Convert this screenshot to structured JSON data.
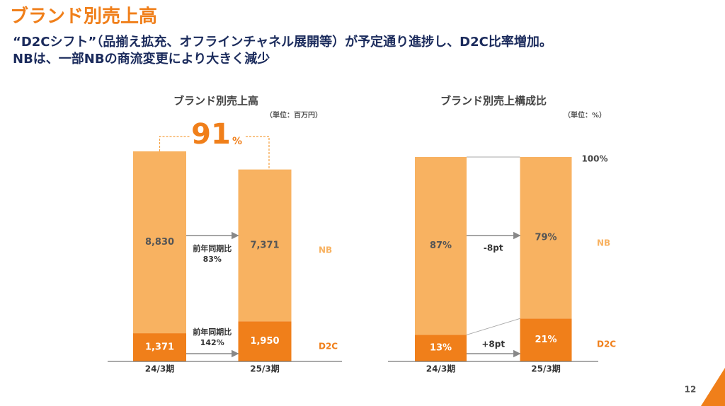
{
  "header": {
    "title": "ブランド別売上高",
    "subtitle_lines": [
      "“D2Cシフト”（品揃え拡充、オフラインチャネル展開等）が予定通り進捗し、D2C比率増加。",
      "NBは、一部NBの商流変更により大きく減少"
    ]
  },
  "page_number": "12",
  "chart_data": [
    {
      "type": "bar",
      "stacked": true,
      "title": "ブランド別売上高",
      "unit": "（単位：百万円）",
      "categories": [
        "24/3期",
        "25/3期"
      ],
      "series": [
        {
          "name": "D2C",
          "color": "#f07f1a",
          "values": [
            1371,
            1950
          ],
          "value_labels": [
            "1,371",
            "1,950"
          ]
        },
        {
          "name": "NB",
          "color": "#f8b261",
          "values": [
            8830,
            7371
          ],
          "value_labels": [
            "8,830",
            "7,371"
          ]
        }
      ],
      "growth": {
        "number": "91",
        "unit": "%"
      },
      "annotations": [
        {
          "label": "前年同期比",
          "value": "142%"
        },
        {
          "label": "前年同期比",
          "value": "83%"
        }
      ]
    },
    {
      "type": "bar",
      "stacked": true,
      "title": "ブランド別売上構成比",
      "unit": "（単位：%）",
      "categories": [
        "24/3期",
        "25/3期"
      ],
      "series": [
        {
          "name": "D2C",
          "color": "#f07f1a",
          "values": [
            13,
            21
          ],
          "value_labels": [
            "13%",
            "21%"
          ]
        },
        {
          "name": "NB",
          "color": "#f8b261",
          "values": [
            87,
            79
          ],
          "value_labels": [
            "87%",
            "79%"
          ]
        }
      ],
      "ylim": [
        0,
        100
      ],
      "yticks": [
        {
          "value": 100,
          "label": "100%"
        }
      ],
      "annotations": [
        {
          "value": "+8pt"
        },
        {
          "value": "-8pt"
        }
      ]
    }
  ]
}
